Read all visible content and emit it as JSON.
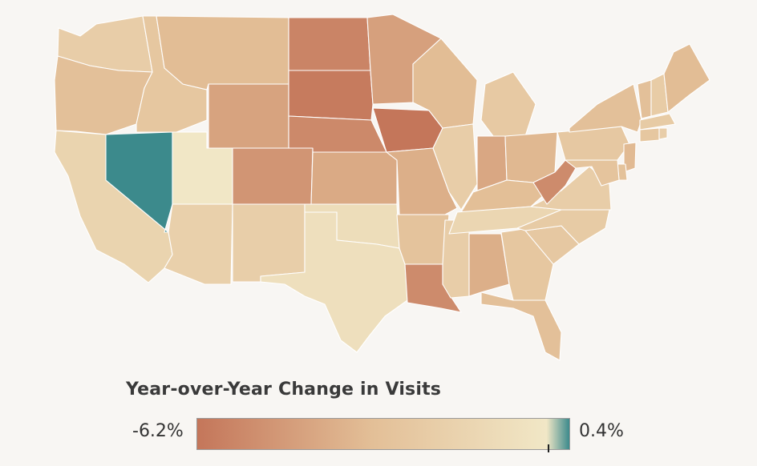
{
  "legend": {
    "title": "Year-over-Year Change in Visits",
    "min_label": "-6.2%",
    "max_label": "0.4%",
    "min_value": -6.2,
    "max_value": 0.4,
    "marker_value": 0.0,
    "colors": {
      "low": "#c4765a",
      "mid": "#e3bf97",
      "near_zero": "#f1e7c6",
      "high": "#3c8a8c"
    }
  },
  "chart_data": {
    "type": "choropleth",
    "title": "",
    "value_label": "Year-over-Year Change in Visits",
    "unit": "%",
    "range": [
      -6.2,
      0.4
    ],
    "states": [
      {
        "id": "WA",
        "value": -2.0
      },
      {
        "id": "OR",
        "value": -3.0
      },
      {
        "id": "CA",
        "value": -1.5
      },
      {
        "id": "NV",
        "value": 0.4
      },
      {
        "id": "ID",
        "value": -2.5
      },
      {
        "id": "MT",
        "value": -3.2
      },
      {
        "id": "WY",
        "value": -4.3
      },
      {
        "id": "UT",
        "value": 0.0
      },
      {
        "id": "AZ",
        "value": -1.8
      },
      {
        "id": "CO",
        "value": -4.9
      },
      {
        "id": "NM",
        "value": -1.9
      },
      {
        "id": "ND",
        "value": -5.6
      },
      {
        "id": "SD",
        "value": -6.0
      },
      {
        "id": "NE",
        "value": -5.4
      },
      {
        "id": "KS",
        "value": -4.0
      },
      {
        "id": "OK",
        "value": -0.8
      },
      {
        "id": "TX",
        "value": -0.6
      },
      {
        "id": "MN",
        "value": -4.4
      },
      {
        "id": "IA",
        "value": -6.2
      },
      {
        "id": "MO",
        "value": -3.8
      },
      {
        "id": "AR",
        "value": -2.8
      },
      {
        "id": "LA",
        "value": -5.3
      },
      {
        "id": "WI",
        "value": -3.2
      },
      {
        "id": "IL",
        "value": -2.0
      },
      {
        "id": "MS",
        "value": -2.0
      },
      {
        "id": "MI",
        "value": -2.3
      },
      {
        "id": "IN",
        "value": -4.1
      },
      {
        "id": "OH",
        "value": -3.4
      },
      {
        "id": "KY",
        "value": -3.1
      },
      {
        "id": "TN",
        "value": -1.3
      },
      {
        "id": "AL",
        "value": -3.8
      },
      {
        "id": "GA",
        "value": -2.5
      },
      {
        "id": "FL",
        "value": -3.0
      },
      {
        "id": "SC",
        "value": -2.4
      },
      {
        "id": "NC",
        "value": -2.2
      },
      {
        "id": "VA",
        "value": -2.0
      },
      {
        "id": "WV",
        "value": -5.3
      },
      {
        "id": "PA",
        "value": -2.4
      },
      {
        "id": "NY",
        "value": -3.0
      },
      {
        "id": "VT",
        "value": -3.0
      },
      {
        "id": "NH",
        "value": -2.1
      },
      {
        "id": "ME",
        "value": -3.2
      },
      {
        "id": "MA",
        "value": -2.2
      },
      {
        "id": "CT",
        "value": -2.5
      },
      {
        "id": "RI",
        "value": -2.0
      },
      {
        "id": "NJ",
        "value": -3.3
      },
      {
        "id": "DE",
        "value": -2.9
      },
      {
        "id": "MD",
        "value": -2.7
      }
    ]
  }
}
